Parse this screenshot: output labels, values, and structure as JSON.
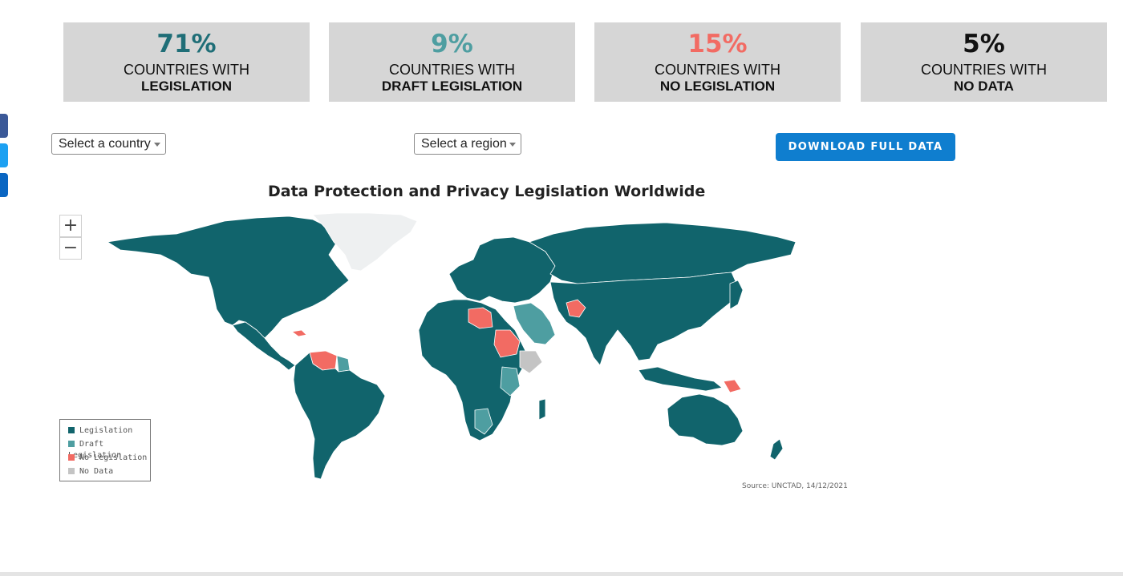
{
  "stats": [
    {
      "value": "71%",
      "line1": "COUNTRIES WITH",
      "line2": "LEGISLATION",
      "color": "#1f6e77"
    },
    {
      "value": "9%",
      "line1": "COUNTRIES WITH",
      "line2": "DRAFT LEGISLATION",
      "color": "#4e9ea1"
    },
    {
      "value": "15%",
      "line1": "COUNTRIES WITH",
      "line2": "NO LEGISLATION",
      "color": "#f26b63"
    },
    {
      "value": "5%",
      "line1": "COUNTRIES WITH",
      "line2": "NO DATA",
      "color": "#111111"
    }
  ],
  "filters": {
    "country": "Select a country",
    "region": "Select a region"
  },
  "download_label": "DOWNLOAD FULL DATA",
  "map": {
    "title": "Data Protection and Privacy Legislation Worldwide",
    "zoom_in": "+",
    "zoom_out": "−",
    "source": "Source: UNCTAD, 14/12/2021",
    "legend": [
      {
        "label": "Legislation",
        "color": "#11646c"
      },
      {
        "label": "Draft Legislation",
        "color": "#4e9ea1"
      },
      {
        "label": "No Legislation",
        "color": "#f26b63"
      },
      {
        "label": "No Data",
        "color": "#c4c4c4"
      }
    ]
  },
  "social": [
    {
      "icon": "facebook-icon",
      "color": "#3b5998"
    },
    {
      "icon": "twitter-icon",
      "color": "#1da1f2"
    },
    {
      "icon": "linkedin-icon",
      "color": "#0a66c2"
    }
  ]
}
